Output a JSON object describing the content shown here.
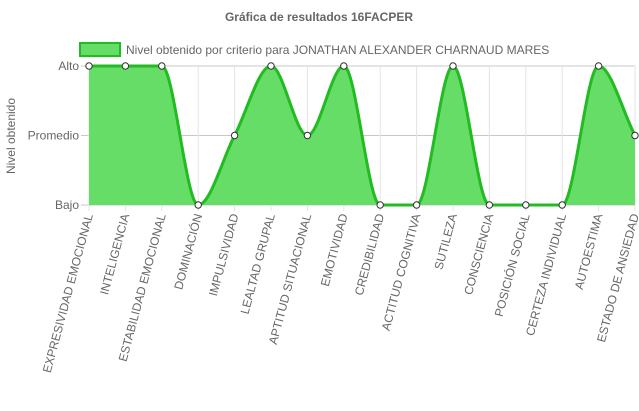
{
  "chart_data": {
    "type": "area",
    "title": "Gráfica de resultados 16FACPER",
    "ylabel": "Nivel obtenido",
    "xlabel": "",
    "y_levels": [
      "Bajo",
      "Promedio",
      "Alto"
    ],
    "ylim": [
      0,
      2
    ],
    "grid": true,
    "legend_position": "top",
    "categories": [
      "EXPRESIVIDAD EMOCIONAL",
      "INTELIGENCIA",
      "ESTABILIDAD EMOCIONAL",
      "DOMINACIÓN",
      "IMPULSIVIDAD",
      "LEALTAD GRUPAL",
      "APTITUD SITUACIONAL",
      "EMOTIVIDAD",
      "CREDIBILIDAD",
      "ACTITUD COGNITIVA",
      "SUTILEZA",
      "CONSCIENCIA",
      "POSICIÓN SOCIAL",
      "CERTEZA INDIVIDUAL",
      "AUTOESTIMA",
      "ESTADO DE ANSIEDAD"
    ],
    "series": [
      {
        "name": "Nivel obtenido por criterio para JONATHAN ALEXANDER CHARNAUD MARES",
        "values": [
          2,
          2,
          2,
          0,
          1,
          2,
          1,
          2,
          0,
          0,
          2,
          0,
          0,
          0,
          2,
          1
        ],
        "fill_color": "#66dd66",
        "line_color": "#22bb22"
      }
    ]
  }
}
